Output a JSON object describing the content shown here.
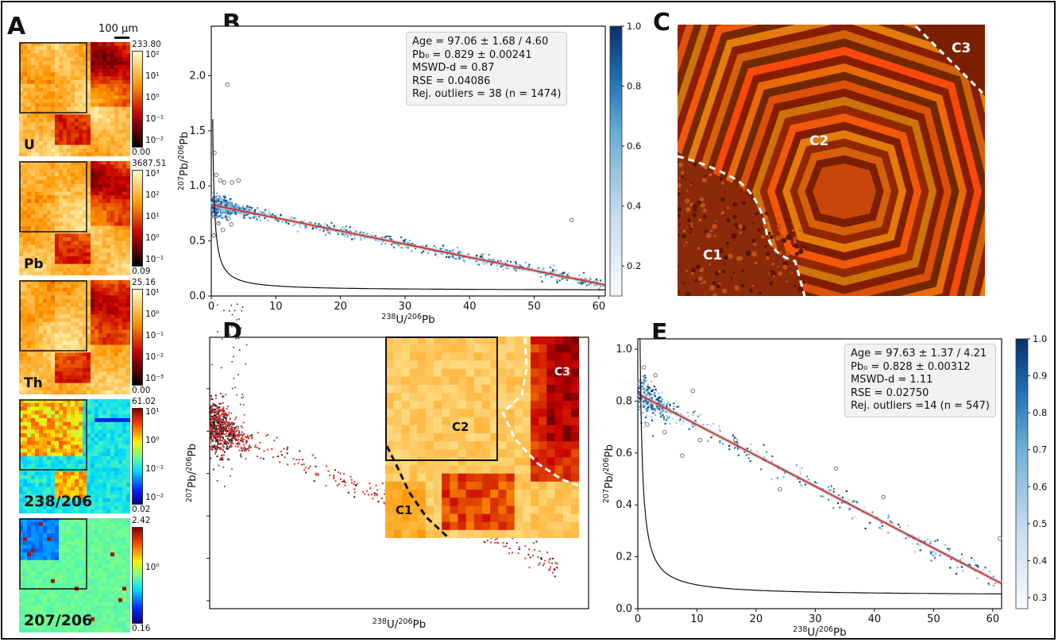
{
  "panels": {
    "a": {
      "letter": "A",
      "scale_bar": "100 µm",
      "maps": [
        {
          "name": "U",
          "max": "233.80",
          "min": "0.00",
          "ticks": [
            "10²",
            "10¹",
            "10⁰",
            "10⁻¹",
            "10⁻²"
          ],
          "cmap": "hot"
        },
        {
          "name": "Pb",
          "max": "3687.51",
          "min": "0.09",
          "ticks": [
            "10³",
            "10²",
            "10¹",
            "10⁰",
            "10⁻¹"
          ],
          "cmap": "hot"
        },
        {
          "name": "Th",
          "max": "25.16",
          "min": "0.00",
          "ticks": [
            "10¹",
            "10⁰",
            "10⁻¹",
            "10⁻²",
            "10⁻³"
          ],
          "cmap": "hot"
        },
        {
          "name": "238/206",
          "max": "61.02",
          "min": "0.02",
          "ticks": [
            "10¹",
            "10⁰",
            "10⁻¹",
            "10⁻²"
          ],
          "cmap": "jet"
        },
        {
          "name": "207/206",
          "max": "2.42",
          "min": "0.16",
          "ticks": [
            "10⁰"
          ],
          "cmap": "jet"
        }
      ]
    },
    "b": {
      "letter": "B",
      "stats": [
        "Age = 97.06 ± 1.68 / 4.60",
        "Pb₀ = 0.829 ± 0.00241",
        "MSWD-d  =  0.87",
        "RSE  =  0.04086",
        "Rej. outliers = 38 (n = 1474)"
      ],
      "colorbar_ticks": [
        "1.0",
        "0.8",
        "0.6",
        "0.4",
        "0.2"
      ]
    },
    "c": {
      "letter": "C",
      "zones": [
        "C1",
        "C2",
        "C3"
      ]
    },
    "d": {
      "letter": "D",
      "zones": [
        "C1",
        "C2",
        "C3"
      ]
    },
    "e": {
      "letter": "E",
      "stats": [
        "Age = 97.63 ± 1.37 / 4.21",
        "Pb₀ = 0.828 ± 0.00312",
        "MSWD-d  =  1.11",
        "RSE  =  0.02750",
        "Rej. outliers =14 (n = 547)"
      ],
      "colorbar_ticks": [
        "1.0",
        "0.9",
        "0.8",
        "0.7",
        "0.6",
        "0.5",
        "0.4",
        "0.3"
      ]
    }
  },
  "chart_data": [
    {
      "panel": "B",
      "type": "scatter",
      "xlabel_base": "U/",
      "xlabel_sup1": "238",
      "xlabel_sup2": "206",
      "xlabel_tail": "Pb",
      "ylabel_sup1": "207",
      "ylabel_mid": "Pb/",
      "ylabel_sup2": "206",
      "ylabel_tail": "Pb",
      "xlim": [
        0,
        61
      ],
      "ylim": [
        0,
        2.45
      ],
      "xticks": [
        0,
        10,
        20,
        30,
        40,
        50,
        60
      ],
      "yticks": [
        0.0,
        0.5,
        1.0,
        1.5,
        2.0
      ],
      "regression": {
        "intercept": 0.829,
        "slope": -0.01195
      },
      "concordia_asymptote": 0.05,
      "outliers": [
        [
          0.5,
          1.3
        ],
        [
          0.8,
          1.1
        ],
        [
          1.4,
          1.05
        ],
        [
          2.0,
          1.03
        ],
        [
          2.5,
          1.92
        ],
        [
          3.2,
          1.03
        ],
        [
          4.2,
          1.05
        ],
        [
          0.6,
          0.72
        ],
        [
          1.1,
          0.66
        ],
        [
          1.8,
          0.6
        ],
        [
          2.6,
          0.7
        ],
        [
          3.1,
          0.65
        ],
        [
          0.4,
          0.55
        ],
        [
          55.8,
          0.69
        ]
      ],
      "colorbar_range": [
        0.1,
        1.0
      ],
      "n_points": 1474
    },
    {
      "panel": "D",
      "type": "scatter",
      "xlabel_base": "U/",
      "xlabel_sup1": "238",
      "xlabel_sup2": "206",
      "xlabel_tail": "Pb",
      "ylabel_sup1": "207",
      "ylabel_mid": "Pb/",
      "ylabel_sup2": "206",
      "ylabel_tail": "Pb",
      "regression": {
        "intercept": 0.829,
        "slope": -0.01195
      }
    },
    {
      "panel": "E",
      "type": "scatter",
      "xlabel_base": "U/",
      "xlabel_sup1": "238",
      "xlabel_sup2": "206",
      "xlabel_tail": "Pb",
      "ylabel_sup1": "207",
      "ylabel_mid": "Pb/",
      "ylabel_sup2": "206",
      "ylabel_tail": "Pb",
      "xlim": [
        0,
        61.5
      ],
      "ylim": [
        0,
        1.04
      ],
      "xticks": [
        0,
        10,
        20,
        30,
        40,
        50,
        60
      ],
      "yticks": [
        0.0,
        0.2,
        0.4,
        0.6,
        0.8,
        1.0
      ],
      "regression": {
        "intercept": 0.828,
        "slope": -0.01189
      },
      "concordia_asymptote": 0.05,
      "outliers": [
        [
          1.0,
          0.93
        ],
        [
          1.6,
          0.71
        ],
        [
          3.0,
          0.9
        ],
        [
          4.5,
          0.68
        ],
        [
          7.5,
          0.59
        ],
        [
          9.3,
          0.84
        ],
        [
          10.5,
          0.65
        ],
        [
          16.5,
          0.65
        ],
        [
          24.0,
          0.46
        ],
        [
          33.5,
          0.54
        ],
        [
          41.5,
          0.43
        ],
        [
          61.2,
          0.27
        ]
      ],
      "colorbar_range": [
        0.27,
        1.0
      ],
      "n_points": 547
    }
  ]
}
